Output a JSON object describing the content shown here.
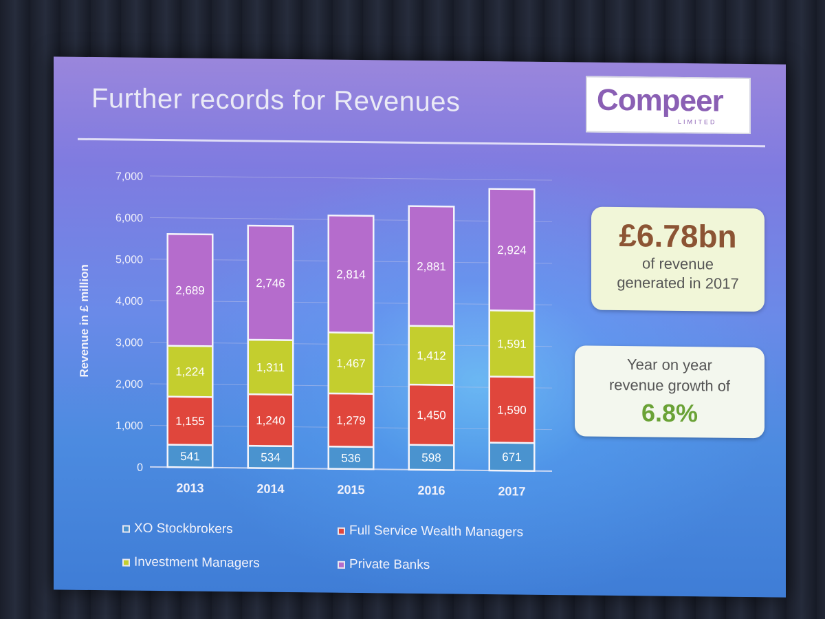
{
  "slide": {
    "title": "Further records for Revenues",
    "logo_text": "Compeer",
    "logo_subtext": "LIMITED"
  },
  "callouts": {
    "revenue_value": "£6.78bn",
    "revenue_line1": "of revenue",
    "revenue_line2": "generated in 2017",
    "growth_line1": "Year on year",
    "growth_line2": "revenue growth of",
    "growth_value": "6.8%"
  },
  "chart_data": {
    "type": "bar",
    "stacked": true,
    "ylabel": "Revenue in £ million",
    "xlabel": "",
    "ylim": [
      0,
      7000
    ],
    "yticks": [
      0,
      1000,
      2000,
      3000,
      4000,
      5000,
      6000,
      7000
    ],
    "ytick_labels": [
      "0",
      "1,000",
      "2,000",
      "3,000",
      "4,000",
      "5,000",
      "6,000",
      "7,000"
    ],
    "grid": true,
    "legend_position": "bottom",
    "categories": [
      "2013",
      "2014",
      "2015",
      "2016",
      "2017"
    ],
    "series": [
      {
        "name": "XO Stockbrokers",
        "color": "#4a93cf",
        "values": [
          541,
          534,
          536,
          598,
          671
        ],
        "labels": [
          "541",
          "534",
          "536",
          "598",
          "671"
        ]
      },
      {
        "name": "Full Service Wealth Managers",
        "color": "#e0463c",
        "values": [
          1155,
          1240,
          1279,
          1450,
          1590
        ],
        "labels": [
          "1,155",
          "1,240",
          "1,279",
          "1,450",
          "1,590"
        ]
      },
      {
        "name": "Investment Managers",
        "color": "#c4ce2e",
        "values": [
          1224,
          1311,
          1467,
          1412,
          1591
        ],
        "labels": [
          "1,224",
          "1,311",
          "1,467",
          "1,412",
          "1,591"
        ]
      },
      {
        "name": "Private Banks",
        "color": "#b56ccc",
        "values": [
          2689,
          2746,
          2814,
          2881,
          2924
        ],
        "labels": [
          "2,689",
          "2,746",
          "2,814",
          "2,881",
          "2,924"
        ]
      }
    ]
  }
}
